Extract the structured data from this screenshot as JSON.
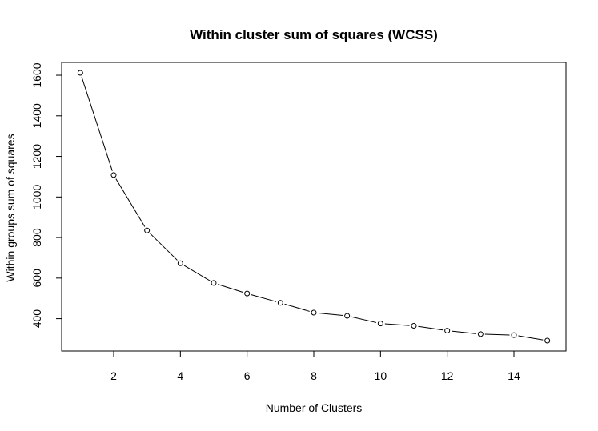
{
  "chart_data": {
    "type": "line",
    "title": "Within cluster sum of squares (WCSS)",
    "xlabel": "Number of Clusters",
    "ylabel": "Within groups sum of squares",
    "x": [
      1,
      2,
      3,
      4,
      5,
      6,
      7,
      8,
      9,
      10,
      11,
      12,
      13,
      14,
      15
    ],
    "values": [
      1612,
      1108,
      835,
      673,
      576,
      524,
      478,
      430,
      414,
      376,
      365,
      341,
      324,
      319,
      292
    ],
    "x_ticks": [
      2,
      4,
      6,
      8,
      10,
      12,
      14
    ],
    "y_ticks": [
      400,
      600,
      800,
      1000,
      1200,
      1400,
      1600
    ],
    "xlim": [
      0.44,
      15.56
    ],
    "ylim": [
      240.8,
      1663.2
    ],
    "marker": "open-circle",
    "line_color": "#000000",
    "grid": false
  }
}
